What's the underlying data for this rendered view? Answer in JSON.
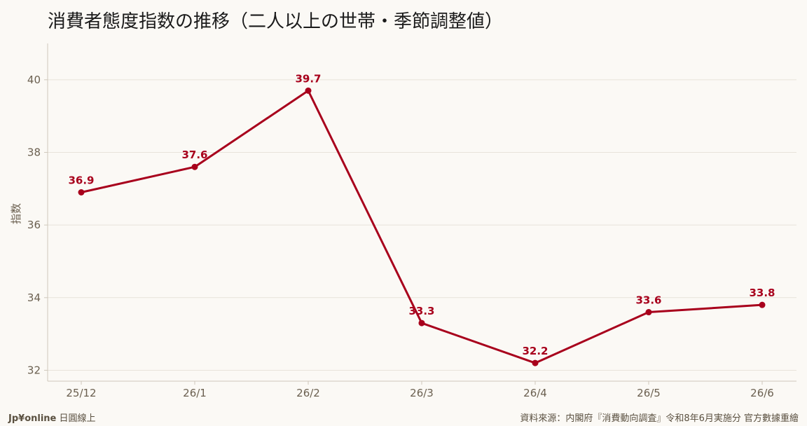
{
  "chart_data": {
    "type": "line",
    "title": "消費者態度指数の推移（二人以上の世帯・季節調整値）",
    "ylabel": "指数",
    "categories": [
      "25/12",
      "26/1",
      "26/2",
      "26/3",
      "26/4",
      "26/5",
      "26/6"
    ],
    "series": [
      {
        "values": [
          36.9,
          37.6,
          39.7,
          33.3,
          32.2,
          33.6,
          33.8
        ]
      }
    ],
    "data_labels": [
      "36.9",
      "37.6",
      "39.7",
      "33.3",
      "32.2",
      "33.6",
      "33.8"
    ],
    "ylim": [
      31.7,
      41.0
    ],
    "yticks": [
      32,
      34,
      36,
      38,
      40
    ],
    "ytick_labels": [
      "32",
      "34",
      "36",
      "38",
      "40"
    ],
    "grid": true,
    "line_color": "#a8001c",
    "grid_color": "#e8e3da",
    "axis_color": "#cfc8bc"
  },
  "footer": {
    "brand": "Jp¥online",
    "brand_suffix": " 日圓線上",
    "source": "資料來源：内閣府『消費動向調査』令和8年6月実施分 官方數據重繪"
  }
}
